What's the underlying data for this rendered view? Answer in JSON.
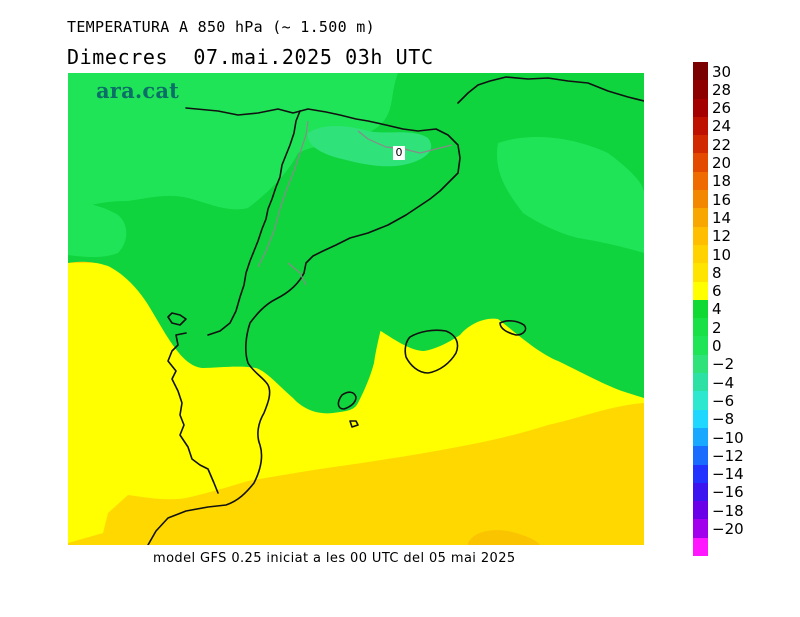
{
  "header": {
    "title": "TEMPERATURA A 850 hPa (~ 1.500 m)",
    "subtitle": "Dimecres  07.mai.2025 03h UTC"
  },
  "map": {
    "brand": "ara.cat",
    "isotherm_label": "0",
    "zone_colors": {
      "green_dark": "#0fd43e",
      "green_light": "#20e457",
      "green_mint": "#2fe27a",
      "yellow": "#ffff00",
      "gold": "#ffd800",
      "orange_patch": "#fbc400"
    },
    "border_color": "#111111",
    "inner_border_color": "#8a8a8a"
  },
  "footer": {
    "text": "model GFS 0.25 iniciat a les 00 UTC del 05 mai 2025"
  },
  "legend": {
    "labels": [
      "30",
      "28",
      "26",
      "24",
      "22",
      "20",
      "18",
      "16",
      "14",
      "12",
      "10",
      "8",
      "6",
      "4",
      "2",
      "0",
      "−2",
      "−4",
      "−6",
      "−8",
      "−10",
      "−12",
      "−14",
      "−16",
      "−18",
      "−20"
    ],
    "colors": [
      "#7a0000",
      "#8c0000",
      "#a40000",
      "#be1100",
      "#d22a00",
      "#e34a00",
      "#ef6b00",
      "#f38700",
      "#f8a600",
      "#ffbe00",
      "#ffd200",
      "#ffe400",
      "#ffff00",
      "#10d933",
      "#18e046",
      "#20e457",
      "#2fe27a",
      "#2de0a3",
      "#2de8cf",
      "#20d8ff",
      "#18a8ff",
      "#1a6cff",
      "#2232ff",
      "#3b14f0",
      "#6a00e8",
      "#a200ec",
      "#ff18ff"
    ]
  }
}
